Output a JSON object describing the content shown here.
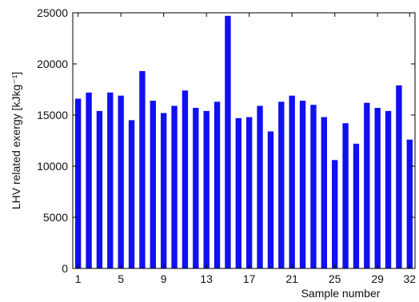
{
  "chart_data": {
    "type": "bar",
    "title": "",
    "xlabel": "Sample number",
    "ylabel": "LHV related exergy [kJkg⁻¹]",
    "ylim": [
      0,
      25000
    ],
    "xlim": [
      0.5,
      32.5
    ],
    "yticks": [
      0,
      5000,
      10000,
      15000,
      20000,
      25000
    ],
    "xticks": [
      1,
      5,
      9,
      13,
      17,
      21,
      25,
      29,
      32
    ],
    "grid": false,
    "bar_color": "#1010f0",
    "x": [
      1,
      2,
      3,
      4,
      5,
      6,
      7,
      8,
      9,
      10,
      11,
      12,
      13,
      14,
      15,
      16,
      17,
      18,
      19,
      20,
      21,
      22,
      23,
      24,
      25,
      26,
      27,
      28,
      29,
      30,
      31,
      32
    ],
    "values": [
      16600,
      17200,
      15400,
      17200,
      16900,
      14500,
      19300,
      16400,
      15200,
      15900,
      17400,
      15700,
      15400,
      16300,
      24700,
      14700,
      14800,
      15900,
      13400,
      16300,
      16900,
      16400,
      16000,
      14800,
      10600,
      14200,
      12200,
      16200,
      15700,
      15400,
      17900,
      12600
    ]
  }
}
